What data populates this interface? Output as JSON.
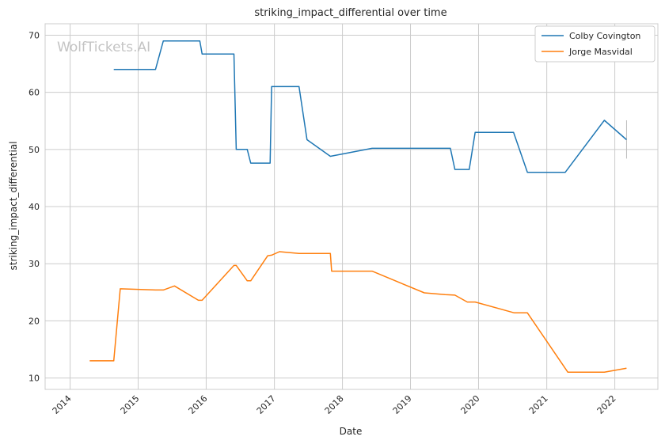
{
  "chart_data": {
    "type": "line",
    "title": "striking_impact_differential over time",
    "xlabel": "Date",
    "ylabel": "striking_impact_differential",
    "watermark": "WolfTickets.AI",
    "xlim": [
      "2013-08-20",
      "2022-08-20"
    ],
    "ylim": [
      8,
      72
    ],
    "x_ticks": [
      {
        "label": "2014",
        "date": "2014-01-01"
      },
      {
        "label": "2015",
        "date": "2015-01-01"
      },
      {
        "label": "2016",
        "date": "2016-01-01"
      },
      {
        "label": "2017",
        "date": "2017-01-01"
      },
      {
        "label": "2018",
        "date": "2018-01-01"
      },
      {
        "label": "2019",
        "date": "2019-01-01"
      },
      {
        "label": "2020",
        "date": "2020-01-01"
      },
      {
        "label": "2021",
        "date": "2021-01-01"
      },
      {
        "label": "2022",
        "date": "2022-01-01"
      }
    ],
    "y_ticks": [
      10,
      20,
      30,
      40,
      50,
      60,
      70
    ],
    "grid": true,
    "legend_position": "top-right",
    "series": [
      {
        "name": "Colby Covington",
        "color": "#1f77b4",
        "points": [
          [
            "2014-08-23",
            64.0
          ],
          [
            "2015-04-04",
            64.0
          ],
          [
            "2015-05-16",
            69.0
          ],
          [
            "2015-11-28",
            69.0
          ],
          [
            "2015-12-10",
            66.7
          ],
          [
            "2016-05-29",
            66.7
          ],
          [
            "2016-06-10",
            50.0
          ],
          [
            "2016-08-08",
            50.0
          ],
          [
            "2016-08-27",
            47.6
          ],
          [
            "2016-12-09",
            47.6
          ],
          [
            "2016-12-17",
            61.0
          ],
          [
            "2017-05-13",
            61.0
          ],
          [
            "2017-06-25",
            51.7
          ],
          [
            "2017-10-28",
            48.8
          ],
          [
            "2018-06-09",
            50.2
          ],
          [
            "2019-08-03",
            50.2
          ],
          [
            "2019-08-27",
            46.5
          ],
          [
            "2019-11-12",
            46.5
          ],
          [
            "2019-12-14",
            53.0
          ],
          [
            "2020-07-07",
            53.0
          ],
          [
            "2020-09-19",
            46.0
          ],
          [
            "2021-04-10",
            46.0
          ],
          [
            "2021-11-06",
            55.1
          ],
          [
            "2022-03-05",
            51.7
          ]
        ],
        "error_bar": {
          "date": "2022-03-05",
          "low": 48.4,
          "high": 55.1
        }
      },
      {
        "name": "Jorge Masvidal",
        "color": "#ff7f0e",
        "points": [
          [
            "2014-04-16",
            13.0
          ],
          [
            "2014-08-23",
            13.0
          ],
          [
            "2014-09-27",
            25.6
          ],
          [
            "2015-04-04",
            25.4
          ],
          [
            "2015-05-16",
            25.4
          ],
          [
            "2015-07-15",
            26.1
          ],
          [
            "2015-11-20",
            23.6
          ],
          [
            "2015-12-10",
            23.6
          ],
          [
            "2016-05-29",
            29.7
          ],
          [
            "2016-06-10",
            29.7
          ],
          [
            "2016-08-08",
            27.0
          ],
          [
            "2016-08-27",
            27.0
          ],
          [
            "2016-11-26",
            31.4
          ],
          [
            "2016-12-17",
            31.5
          ],
          [
            "2017-01-28",
            32.1
          ],
          [
            "2017-05-13",
            31.8
          ],
          [
            "2017-10-28",
            31.8
          ],
          [
            "2017-11-04",
            28.7
          ],
          [
            "2018-06-09",
            28.7
          ],
          [
            "2019-03-16",
            24.9
          ],
          [
            "2019-07-06",
            24.6
          ],
          [
            "2019-08-27",
            24.5
          ],
          [
            "2019-11-02",
            23.3
          ],
          [
            "2019-12-14",
            23.3
          ],
          [
            "2020-07-11",
            21.4
          ],
          [
            "2020-09-19",
            21.4
          ],
          [
            "2021-04-24",
            11.0
          ],
          [
            "2021-11-06",
            11.0
          ],
          [
            "2022-03-05",
            11.7
          ]
        ]
      }
    ]
  }
}
